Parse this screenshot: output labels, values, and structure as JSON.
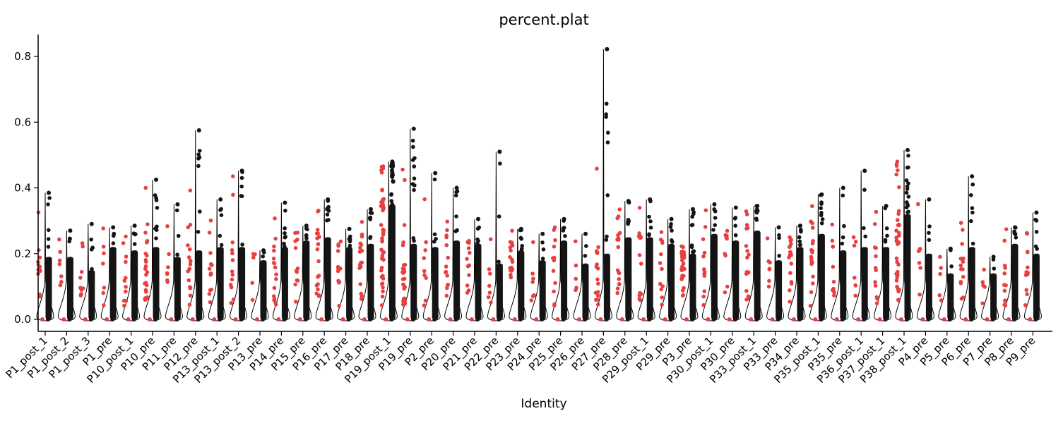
{
  "chart_data": {
    "type": "violin",
    "title": "percent.plat",
    "xlabel": "Identity",
    "ylabel": "",
    "ylim": [
      -0.015,
      0.865
    ],
    "yticks": [
      0.0,
      0.2,
      0.4,
      0.6,
      0.8
    ],
    "ytick_labels": [
      "0.0",
      "0.2",
      "0.4",
      "0.6",
      "0.8"
    ],
    "grid": false,
    "legend": "none",
    "colors": {
      "dark": "#141414",
      "red": "#e84040",
      "axis": "#000000"
    },
    "categories": [
      "P1_post_1",
      "P1_post_2",
      "P1_post_3",
      "P1_pre",
      "P10_post_1",
      "P10_pre",
      "P11_pre",
      "P12_pre",
      "P13_post_1",
      "P13_post_2",
      "P13_pre",
      "P14_pre",
      "P15_pre",
      "P16_pre",
      "P17_pre",
      "P18_pre",
      "P19_post_1",
      "P19_pre",
      "P2_pre",
      "P20_pre",
      "P21_pre",
      "P22_pre",
      "P23_pre",
      "P24_pre",
      "P25_pre",
      "P26_pre",
      "P27_pre",
      "P28_pre",
      "P29_post_1",
      "P29_pre",
      "P3_pre",
      "P30_post_1",
      "P30_pre",
      "P33_post_1",
      "P33_pre",
      "P34_pre",
      "P35_post_1",
      "P35_pre",
      "P36_post_1",
      "P37_post_1",
      "P38_post_1",
      "P4_pre",
      "P5_pre",
      "P6_pre",
      "P7_pre",
      "P8_pre",
      "P9_pre"
    ],
    "max_values": [
      0.385,
      0.27,
      0.29,
      0.28,
      0.285,
      0.425,
      0.35,
      0.575,
      0.365,
      0.452,
      0.21,
      0.355,
      0.285,
      0.365,
      0.275,
      0.335,
      0.48,
      0.58,
      0.445,
      0.4,
      0.305,
      0.51,
      0.275,
      0.26,
      0.305,
      0.26,
      0.822,
      0.36,
      0.365,
      0.305,
      0.335,
      0.35,
      0.34,
      0.345,
      0.28,
      0.285,
      0.38,
      0.4,
      0.452,
      0.345,
      0.515,
      0.365,
      0.215,
      0.435,
      0.19,
      0.28,
      0.325
    ],
    "dense_top": [
      0.19,
      0.19,
      0.15,
      0.22,
      0.21,
      0.22,
      0.19,
      0.21,
      0.22,
      0.22,
      0.18,
      0.22,
      0.24,
      0.25,
      0.22,
      0.23,
      0.35,
      0.23,
      0.22,
      0.24,
      0.23,
      0.17,
      0.21,
      0.18,
      0.24,
      0.17,
      0.2,
      0.25,
      0.25,
      0.23,
      0.2,
      0.26,
      0.24,
      0.27,
      0.18,
      0.22,
      0.26,
      0.21,
      0.22,
      0.22,
      0.32,
      0.2,
      0.14,
      0.22,
      0.14,
      0.23,
      0.2
    ],
    "outlier_counts": [
      10,
      6,
      8,
      6,
      9,
      18,
      6,
      14,
      10,
      11,
      4,
      13,
      10,
      16,
      10,
      14,
      40,
      22,
      8,
      12,
      10,
      6,
      14,
      6,
      10,
      4,
      16,
      14,
      12,
      10,
      22,
      10,
      8,
      14,
      6,
      14,
      16,
      8,
      6,
      10,
      30,
      6,
      4,
      12,
      4,
      10,
      10
    ]
  }
}
